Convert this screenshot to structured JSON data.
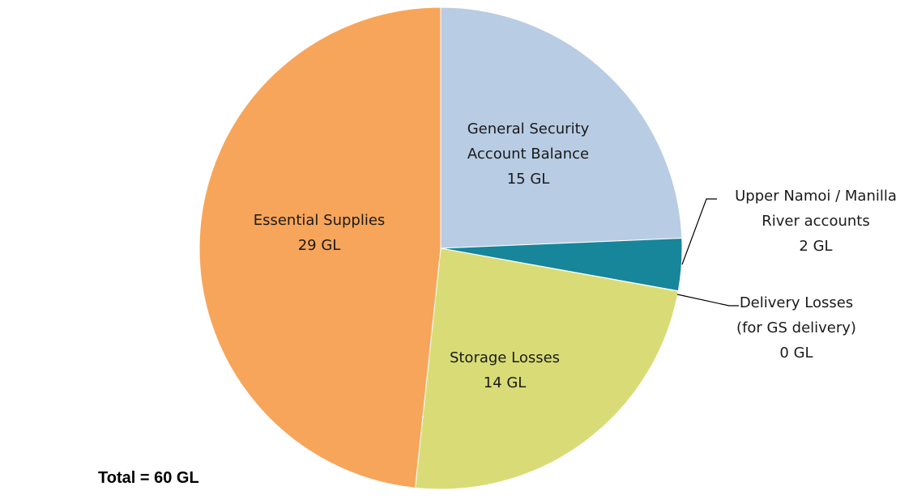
{
  "chart_data": {
    "type": "pie",
    "unit": "GL",
    "slices": [
      {
        "label_lines": [
          "General Security",
          "Account Balance",
          "15 GL"
        ],
        "value": 14.6,
        "color": "#b8cce4"
      },
      {
        "label_lines": [
          "Upper Namoi / Manilla",
          "River accounts",
          "2 GL"
        ],
        "value": 2.1,
        "color": "#17859a"
      },
      {
        "label_lines": [
          "Delivery Losses",
          "(for GS delivery)",
          "0 GL"
        ],
        "value": 0.01,
        "color": "#f2f2f2"
      },
      {
        "label_lines": [
          "Storage Losses",
          "14 GL"
        ],
        "value": 14.3,
        "color": "#d9dc76"
      },
      {
        "label_lines": [
          "Essential Supplies",
          "29 GL"
        ],
        "value": 28.99,
        "color": "#f7a55a"
      }
    ],
    "total_text": "Total = 60 GL"
  }
}
